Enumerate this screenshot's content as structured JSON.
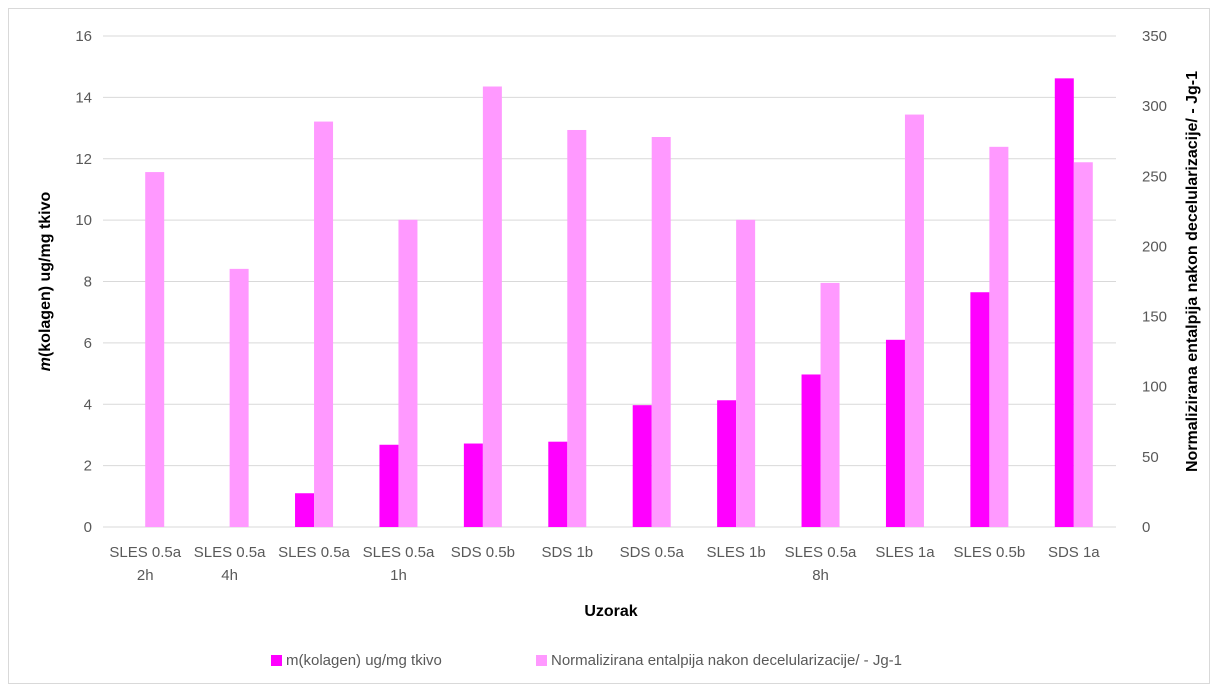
{
  "chart_data": {
    "type": "bar",
    "categories": [
      [
        "SLES 0.5a",
        "2h"
      ],
      [
        "SLES 0.5a",
        "4h"
      ],
      [
        "SLES 0.5a",
        ""
      ],
      [
        "SLES 0.5a",
        "1h"
      ],
      [
        "SDS 0.5b",
        ""
      ],
      [
        "SDS 1b",
        ""
      ],
      [
        "SDS 0.5a",
        ""
      ],
      [
        "SLES 1b",
        ""
      ],
      [
        "SLES 0.5a",
        "8h"
      ],
      [
        "SLES 1a",
        ""
      ],
      [
        "SLES 0.5b",
        ""
      ],
      [
        "SDS 1a",
        ""
      ]
    ],
    "series": [
      {
        "name": "m(kolagen) ug/mg tkivo",
        "axis": "left",
        "color": "#ff00ff",
        "values": [
          null,
          null,
          1.1,
          2.68,
          2.72,
          2.78,
          3.97,
          4.13,
          4.97,
          6.1,
          7.65,
          14.62
        ]
      },
      {
        "name": "Normalizirana entalpija nakon decelularizacije/ - Jg-1",
        "axis": "right",
        "color": "#ff99ff",
        "values": [
          253,
          184,
          289,
          219,
          314,
          283,
          278,
          219,
          174,
          294,
          271,
          260
        ]
      }
    ],
    "xlabel": "Uzorak",
    "ylabel_left_italic": "m",
    "ylabel_left_rest": "(kolagen) ug/mg tkivo",
    "ylabel_right": "Normalizirana entalpija nakon decelularizacije/ - Jg-1",
    "ylim_left": [
      0,
      16
    ],
    "yticks_left": [
      0,
      2,
      4,
      6,
      8,
      10,
      12,
      14,
      16
    ],
    "ylim_right": [
      0,
      350
    ],
    "yticks_right": [
      0,
      50,
      100,
      150,
      200,
      250,
      300,
      350
    ],
    "grid": true,
    "legend_position": "bottom"
  }
}
